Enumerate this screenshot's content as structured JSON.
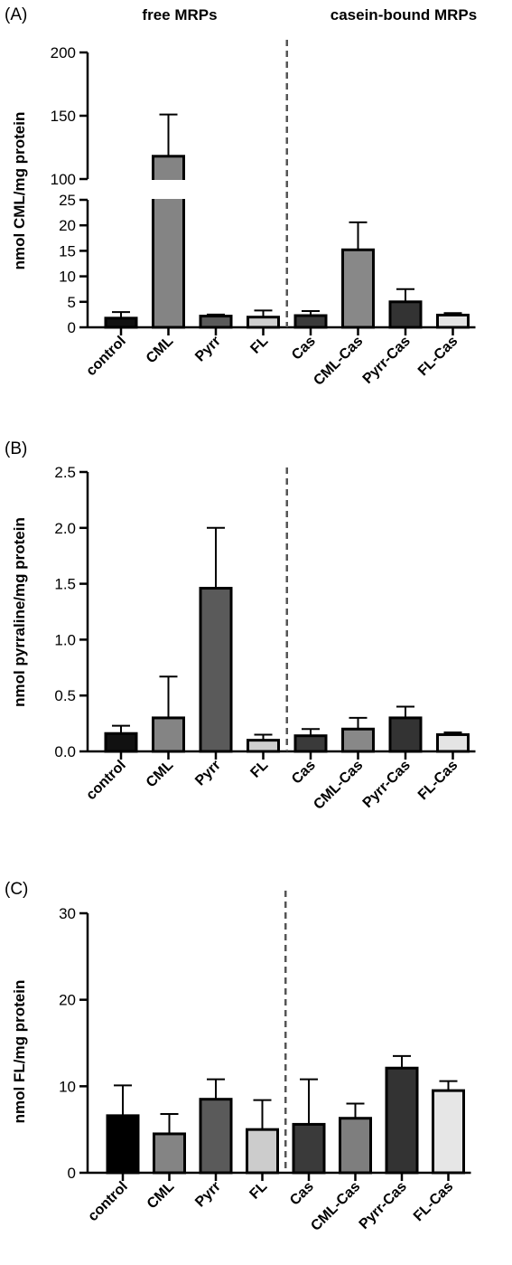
{
  "header": {
    "free_title": "free MRPs",
    "bound_title": "casein-bound MRPs"
  },
  "chart_data": [
    {
      "type": "bar",
      "panel": "(A)",
      "ylabel": "nmol CML/mg protein",
      "categories": [
        "control",
        "CML",
        "Pyrr",
        "FL",
        "Cas",
        "CML-Cas",
        "Pyrr-Cas",
        "FL-Cas"
      ],
      "values": [
        1.8,
        118,
        2.2,
        2.0,
        2.3,
        15.2,
        5.0,
        2.4
      ],
      "errors": [
        1.2,
        33,
        0.3,
        1.3,
        0.9,
        5.4,
        2.5,
        0.4
      ],
      "bar_colors": [
        "#111111",
        "#848484",
        "#5a5a5a",
        "#cfcfcf",
        "#3a3a3a",
        "#888888",
        "#333333",
        "#e4e4e4"
      ],
      "ylim": [
        0,
        200
      ],
      "axis_break": [
        25,
        100
      ],
      "yticks_lower": [
        0,
        5,
        10,
        15,
        20,
        25
      ],
      "yticks_upper": [
        100,
        150,
        200
      ],
      "divider_after_index": 3
    },
    {
      "type": "bar",
      "panel": "(B)",
      "ylabel": "nmol pyrraline/mg protein",
      "categories": [
        "control",
        "CML",
        "Pyrr",
        "FL",
        "Cas",
        "CML-Cas",
        "Pyrr-Cas",
        "FL-Cas"
      ],
      "values": [
        0.16,
        0.3,
        1.46,
        0.1,
        0.14,
        0.2,
        0.3,
        0.15
      ],
      "errors": [
        0.07,
        0.37,
        0.54,
        0.05,
        0.06,
        0.1,
        0.1,
        0.02
      ],
      "bar_colors": [
        "#111111",
        "#848484",
        "#5a5a5a",
        "#cfcfcf",
        "#3a3a3a",
        "#888888",
        "#333333",
        "#e4e4e4"
      ],
      "ylim": [
        0,
        2.5
      ],
      "yticks": [
        "0.0",
        "0.5",
        "1.0",
        "1.5",
        "2.0",
        "2.5"
      ],
      "divider_after_index": 3
    },
    {
      "type": "bar",
      "panel": "(C)",
      "ylabel": "nmol FL/mg protein",
      "categories": [
        "control",
        "CML",
        "Pyrr",
        "FL",
        "Cas",
        "CML-Cas",
        "Pyrr-Cas",
        "FL-Cas"
      ],
      "values": [
        6.6,
        4.5,
        8.5,
        5.0,
        5.6,
        6.3,
        12.1,
        9.5
      ],
      "errors": [
        3.5,
        2.3,
        2.3,
        3.4,
        5.2,
        1.7,
        1.4,
        1.1
      ],
      "bar_colors": [
        "#000000",
        "#848484",
        "#5a5a5a",
        "#cccccc",
        "#3a3a3a",
        "#7e7e7e",
        "#333333",
        "#e6e6e6"
      ],
      "ylim": [
        0,
        30
      ],
      "yticks": [
        "0",
        "10",
        "20",
        "30"
      ],
      "divider_after_index": 3
    }
  ]
}
